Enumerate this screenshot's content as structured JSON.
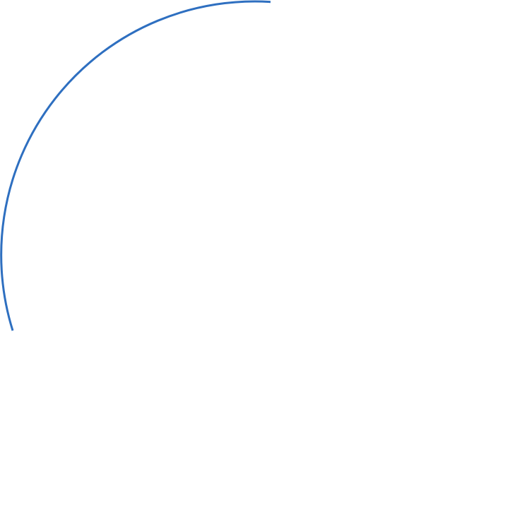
{
  "arc": {
    "stroke_color": "#2e6fc0"
  }
}
